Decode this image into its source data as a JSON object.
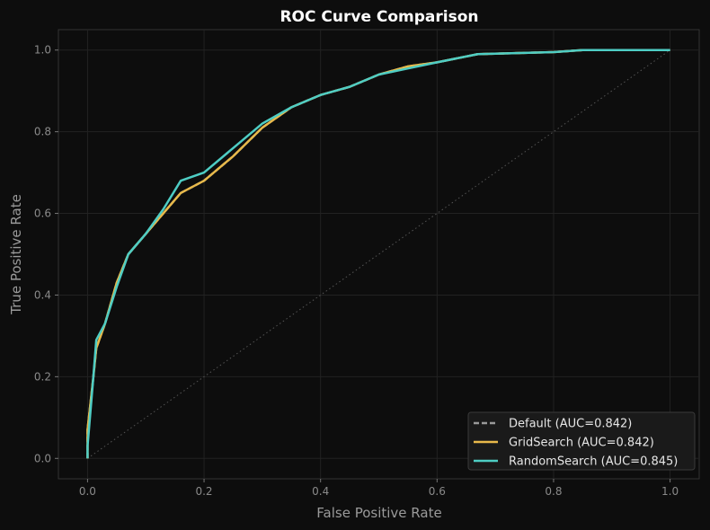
{
  "chart_data": {
    "type": "line",
    "title": "ROC Curve Comparison",
    "xlabel": "False Positive Rate",
    "ylabel": "True Positive Rate",
    "xlim": [
      -0.05,
      1.05
    ],
    "ylim": [
      -0.05,
      1.05
    ],
    "xticks": [
      "0.0",
      "0.2",
      "0.4",
      "0.6",
      "0.8",
      "1.0"
    ],
    "yticks": [
      "0.0",
      "0.2",
      "0.4",
      "0.6",
      "0.8",
      "1.0"
    ],
    "grid": true,
    "legend_position": "lower-right",
    "diagonal": {
      "x": [
        0,
        1
      ],
      "y": [
        0,
        1
      ],
      "color": "#555555",
      "style": "dotted"
    },
    "series": [
      {
        "name": "Default (AUC=0.842)",
        "color": "#999999",
        "style": "dashed",
        "x": [
          0,
          0,
          0.01,
          0.015,
          0.03,
          0.05,
          0.07,
          0.1,
          0.13,
          0.16,
          0.2,
          0.25,
          0.3,
          0.35,
          0.4,
          0.45,
          0.5,
          0.55,
          0.6,
          0.67,
          0.8,
          0.85,
          1
        ],
        "y": [
          0,
          0.07,
          0.2,
          0.27,
          0.33,
          0.43,
          0.5,
          0.55,
          0.6,
          0.65,
          0.68,
          0.74,
          0.81,
          0.86,
          0.89,
          0.91,
          0.94,
          0.96,
          0.97,
          0.99,
          0.995,
          1,
          1
        ]
      },
      {
        "name": "GridSearch (AUC=0.842)",
        "color": "#e8b94a",
        "style": "solid",
        "x": [
          0,
          0,
          0.01,
          0.015,
          0.03,
          0.05,
          0.07,
          0.1,
          0.13,
          0.16,
          0.2,
          0.25,
          0.3,
          0.35,
          0.4,
          0.45,
          0.5,
          0.55,
          0.6,
          0.67,
          0.8,
          0.85,
          1
        ],
        "y": [
          0,
          0.07,
          0.2,
          0.27,
          0.33,
          0.43,
          0.5,
          0.55,
          0.6,
          0.65,
          0.68,
          0.74,
          0.81,
          0.86,
          0.89,
          0.91,
          0.94,
          0.96,
          0.97,
          0.99,
          0.995,
          1,
          1
        ]
      },
      {
        "name": "RandomSearch (AUC=0.845)",
        "color": "#4ecdc4",
        "style": "solid",
        "x": [
          0,
          0,
          0.01,
          0.015,
          0.03,
          0.05,
          0.07,
          0.1,
          0.13,
          0.16,
          0.2,
          0.25,
          0.3,
          0.35,
          0.4,
          0.45,
          0.5,
          0.55,
          0.6,
          0.67,
          0.8,
          0.85,
          1
        ],
        "y": [
          0,
          0.03,
          0.2,
          0.29,
          0.33,
          0.42,
          0.5,
          0.55,
          0.61,
          0.68,
          0.7,
          0.76,
          0.82,
          0.86,
          0.89,
          0.91,
          0.94,
          0.955,
          0.97,
          0.99,
          0.995,
          1,
          1
        ]
      }
    ]
  }
}
